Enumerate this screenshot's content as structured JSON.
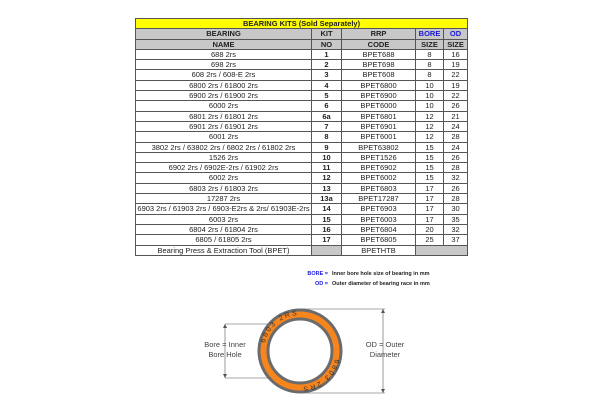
{
  "table": {
    "title": "BEARING KITS (Sold Separately)",
    "headers": {
      "name1": "BEARING",
      "name2": "NAME",
      "kit1": "KIT",
      "kit2": "NO",
      "rrp1": "RRP",
      "rrp2": "CODE",
      "bore1": "BORE",
      "bore2": "SIZE",
      "od1": "OD",
      "od2": "SIZE"
    },
    "rows": [
      [
        "688 2rs",
        "1",
        "BPET688",
        "8",
        "16"
      ],
      [
        "698 2rs",
        "2",
        "BPET698",
        "8",
        "19"
      ],
      [
        "608 2rs / 608-E 2rs",
        "3",
        "BPET608",
        "8",
        "22"
      ],
      [
        "6800 2rs / 61800 2rs",
        "4",
        "BPET6800",
        "10",
        "19"
      ],
      [
        "6900 2rs / 61900 2rs",
        "5",
        "BPET6900",
        "10",
        "22"
      ],
      [
        "6000 2rs",
        "6",
        "BPET6000",
        "10",
        "26"
      ],
      [
        "6801 2rs / 61801 2rs",
        "6a",
        "BPET6801",
        "12",
        "21"
      ],
      [
        "6901 2rs / 61901 2rs",
        "7",
        "BPET6901",
        "12",
        "24"
      ],
      [
        "6001 2rs",
        "8",
        "BPET6001",
        "12",
        "28"
      ],
      [
        "3802 2rs / 63802 2rs / 6802 2rs / 61802 2rs",
        "9",
        "BPET63802",
        "15",
        "24"
      ],
      [
        "1526 2rs",
        "10",
        "BPET1526",
        "15",
        "26"
      ],
      [
        "6902 2rs / 6902E-2rs / 61902 2rs",
        "11",
        "BPET6902",
        "15",
        "28"
      ],
      [
        "6002 2rs",
        "12",
        "BPET6002",
        "15",
        "32"
      ],
      [
        "6803 2rs / 61803 2rs",
        "13",
        "BPET6803",
        "17",
        "26"
      ],
      [
        "17287 2rs",
        "13a",
        "BPET17287",
        "17",
        "28"
      ],
      [
        "6903 2rs / 61903 2rs / 6903-E2rs & 2rs/  61903E-2rs",
        "14",
        "BPET6903",
        "17",
        "30"
      ],
      [
        "6003 2rs",
        "15",
        "BPET6003",
        "17",
        "35"
      ],
      [
        "6804 2rs / 61804 2rs",
        "16",
        "BPET6804",
        "20",
        "32"
      ],
      [
        "6805 / 61805 2rs",
        "17",
        "BPET6805",
        "25",
        "37"
      ]
    ],
    "tool": {
      "name": "Bearing Press & Extraction Tool (BPET)",
      "code": "BPETHTB"
    }
  },
  "legend": [
    {
      "key": "BORE =",
      "text": "Inner bore hole size of bearing in mm"
    },
    {
      "key": "OD =",
      "text": "Outer diameter of bearing race in mm"
    }
  ],
  "diagram": {
    "bore_label_1": "Bore = Inner",
    "bore_label_2": "Bore Hole",
    "od_label_1": "OD = Outer",
    "od_label_2": "Diameter",
    "ring_text_top": "6803  2RS",
    "ring_text_bottom": "6803  2RS",
    "ring_color": "#f7851e",
    "rim_color": "#6b6b6b"
  }
}
